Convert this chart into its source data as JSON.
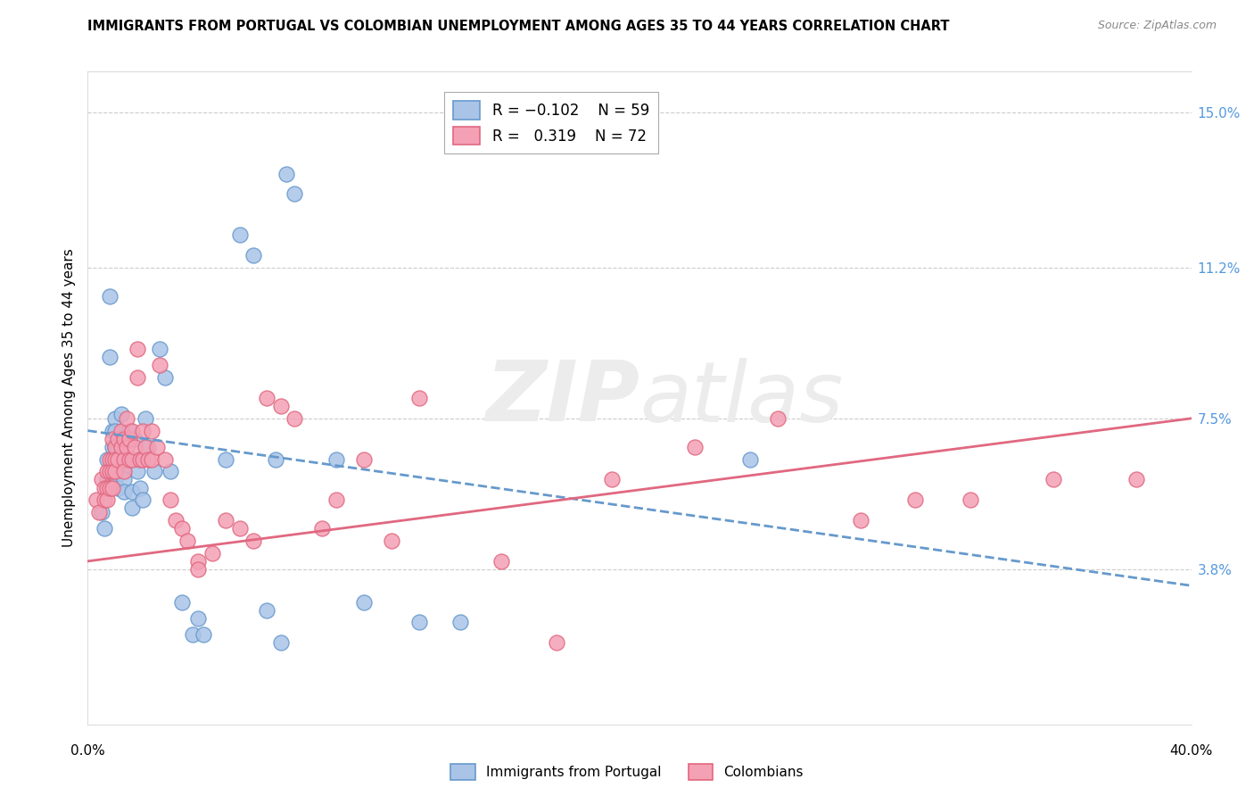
{
  "title": "IMMIGRANTS FROM PORTUGAL VS COLOMBIAN UNEMPLOYMENT AMONG AGES 35 TO 44 YEARS CORRELATION CHART",
  "source": "Source: ZipAtlas.com",
  "ylabel": "Unemployment Among Ages 35 to 44 years",
  "yticks_right": [
    "15.0%",
    "11.2%",
    "7.5%",
    "3.8%"
  ],
  "yticks_right_vals": [
    0.15,
    0.112,
    0.075,
    0.038
  ],
  "legend_portugal": "Immigrants from Portugal",
  "legend_colombians": "Colombians",
  "color_portugal": "#aac4e8",
  "color_colombians": "#f4a0b5",
  "color_portugal_line": "#6699cc",
  "color_colombians_line": "#e06880",
  "watermark_zip": "ZIP",
  "watermark_atlas": "atlas",
  "xlim": [
    0.0,
    0.4
  ],
  "ylim": [
    0.0,
    0.16
  ],
  "portugal_scatter_x": [
    0.005,
    0.006,
    0.007,
    0.007,
    0.008,
    0.008,
    0.009,
    0.009,
    0.009,
    0.01,
    0.01,
    0.01,
    0.01,
    0.01,
    0.011,
    0.011,
    0.011,
    0.011,
    0.012,
    0.012,
    0.012,
    0.013,
    0.013,
    0.013,
    0.013,
    0.014,
    0.014,
    0.015,
    0.015,
    0.016,
    0.016,
    0.017,
    0.018,
    0.018,
    0.019,
    0.02,
    0.021,
    0.022,
    0.024,
    0.026,
    0.028,
    0.03,
    0.034,
    0.038,
    0.04,
    0.042,
    0.05,
    0.055,
    0.06,
    0.065,
    0.068,
    0.07,
    0.072,
    0.075,
    0.09,
    0.1,
    0.12,
    0.135,
    0.24
  ],
  "portugal_scatter_y": [
    0.052,
    0.048,
    0.065,
    0.06,
    0.105,
    0.09,
    0.072,
    0.068,
    0.06,
    0.075,
    0.072,
    0.068,
    0.063,
    0.06,
    0.068,
    0.065,
    0.062,
    0.058,
    0.076,
    0.07,
    0.065,
    0.065,
    0.062,
    0.06,
    0.057,
    0.07,
    0.065,
    0.072,
    0.065,
    0.057,
    0.053,
    0.07,
    0.065,
    0.062,
    0.058,
    0.055,
    0.075,
    0.068,
    0.062,
    0.092,
    0.085,
    0.062,
    0.03,
    0.022,
    0.026,
    0.022,
    0.065,
    0.12,
    0.115,
    0.028,
    0.065,
    0.02,
    0.135,
    0.13,
    0.065,
    0.03,
    0.025,
    0.025,
    0.065
  ],
  "colombians_scatter_x": [
    0.003,
    0.004,
    0.005,
    0.006,
    0.006,
    0.007,
    0.007,
    0.007,
    0.008,
    0.008,
    0.008,
    0.009,
    0.009,
    0.009,
    0.009,
    0.01,
    0.01,
    0.01,
    0.011,
    0.011,
    0.012,
    0.012,
    0.013,
    0.013,
    0.013,
    0.014,
    0.014,
    0.015,
    0.015,
    0.016,
    0.016,
    0.017,
    0.018,
    0.018,
    0.019,
    0.02,
    0.02,
    0.021,
    0.022,
    0.023,
    0.023,
    0.025,
    0.026,
    0.028,
    0.03,
    0.032,
    0.034,
    0.036,
    0.04,
    0.04,
    0.045,
    0.05,
    0.055,
    0.06,
    0.065,
    0.07,
    0.075,
    0.085,
    0.09,
    0.1,
    0.11,
    0.12,
    0.15,
    0.17,
    0.19,
    0.22,
    0.25,
    0.28,
    0.3,
    0.32,
    0.35,
    0.38
  ],
  "colombians_scatter_y": [
    0.055,
    0.052,
    0.06,
    0.058,
    0.055,
    0.062,
    0.058,
    0.055,
    0.065,
    0.062,
    0.058,
    0.07,
    0.065,
    0.062,
    0.058,
    0.068,
    0.065,
    0.062,
    0.07,
    0.065,
    0.072,
    0.068,
    0.07,
    0.065,
    0.062,
    0.075,
    0.068,
    0.07,
    0.065,
    0.072,
    0.065,
    0.068,
    0.092,
    0.085,
    0.065,
    0.072,
    0.065,
    0.068,
    0.065,
    0.072,
    0.065,
    0.068,
    0.088,
    0.065,
    0.055,
    0.05,
    0.048,
    0.045,
    0.04,
    0.038,
    0.042,
    0.05,
    0.048,
    0.045,
    0.08,
    0.078,
    0.075,
    0.048,
    0.055,
    0.065,
    0.045,
    0.08,
    0.04,
    0.02,
    0.06,
    0.068,
    0.075,
    0.05,
    0.055,
    0.055,
    0.06,
    0.06
  ],
  "portugal_trendline_x": [
    0.0,
    0.4
  ],
  "portugal_trendline_y": [
    0.072,
    0.034
  ],
  "colombians_trendline_x": [
    0.0,
    0.4
  ],
  "colombians_trendline_y": [
    0.04,
    0.075
  ]
}
